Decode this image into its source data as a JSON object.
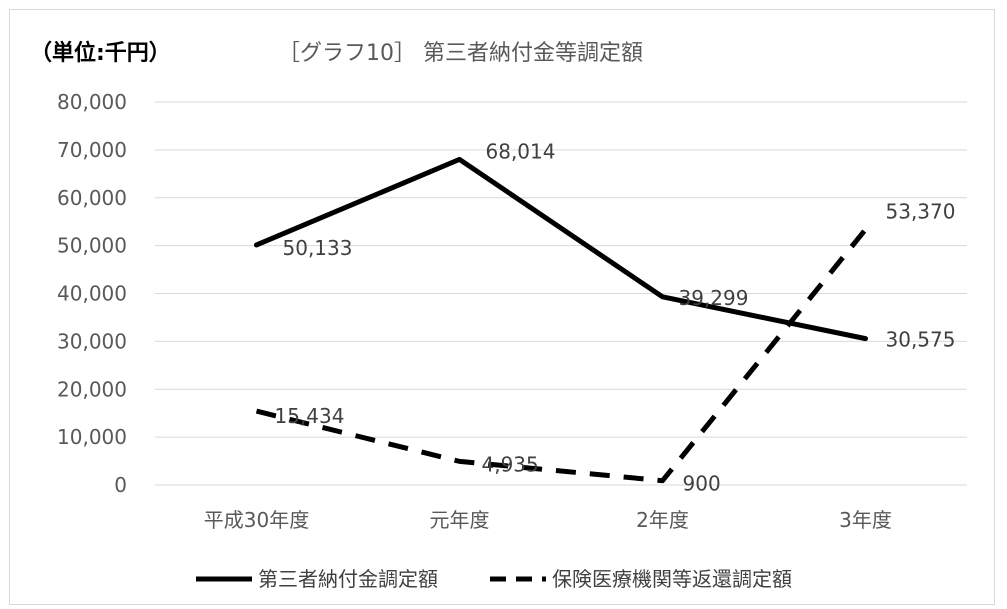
{
  "chart_data": {
    "type": "line",
    "title": "［グラフ10］ 第三者納付金等調定額",
    "unit_label": "（単位:千円）",
    "categories": [
      "平成30年度",
      "元年度",
      "2年度",
      "3年度"
    ],
    "series": [
      {
        "name": "第三者納付金調定額",
        "values": [
          50133,
          68014,
          39299,
          30575
        ],
        "labels": [
          "50,133",
          "68,014",
          "39,299",
          "30,575"
        ],
        "style": "solid",
        "color": "#000000"
      },
      {
        "name": "保険医療機関等返還調定額",
        "values": [
          15434,
          4935,
          900,
          53370
        ],
        "labels": [
          "15,434",
          "4,935",
          "900",
          "53,370"
        ],
        "style": "dashed",
        "color": "#000000"
      }
    ],
    "yticks": [
      "0",
      "10,000",
      "20,000",
      "30,000",
      "40,000",
      "50,000",
      "60,000",
      "70,000",
      "80,000"
    ],
    "ylim": [
      0,
      80000
    ],
    "grid": true,
    "legend_position": "bottom"
  }
}
